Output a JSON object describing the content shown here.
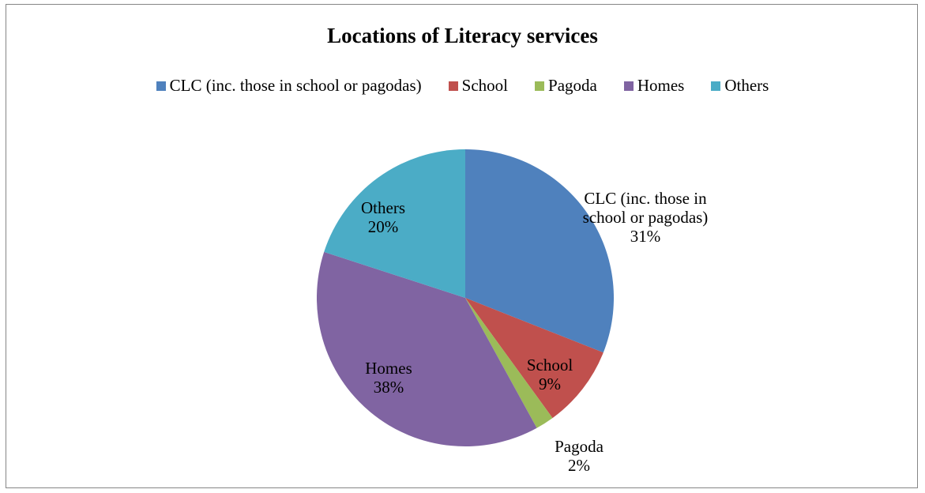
{
  "chart_data": {
    "type": "pie",
    "title": "Locations of Literacy services",
    "categories": [
      "CLC (inc. those in school or pagodas)",
      "School",
      "Pagoda",
      "Homes",
      "Others"
    ],
    "values": [
      31,
      9,
      2,
      38,
      20
    ],
    "value_labels": [
      "31%",
      "9%",
      "2%",
      "38%",
      "20%"
    ],
    "colors": [
      "#4f81bd",
      "#c0504d",
      "#9bbb59",
      "#8064a2",
      "#4bacc6"
    ],
    "legend": "top"
  }
}
